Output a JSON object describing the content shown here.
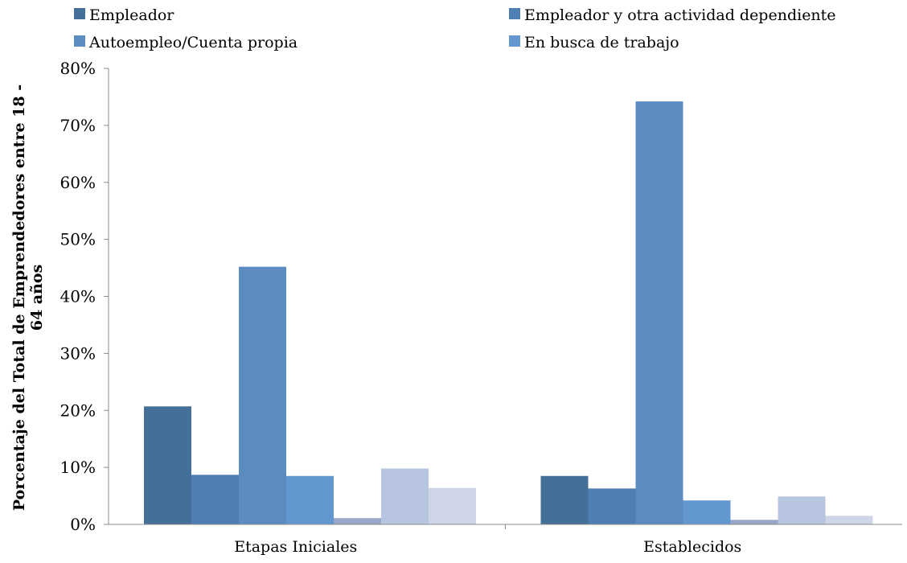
{
  "chart_data": {
    "type": "bar",
    "title": "",
    "xlabel": "",
    "ylabel": "Porcentaje del Total de Emprendedores entre 18 - 64 años",
    "ylabel_lines": [
      "Porcentaje del Total de Emprendedores entre 18 -",
      "64 años"
    ],
    "categories": [
      "Etapas Iniciales",
      "Establecidos"
    ],
    "ylim": [
      0,
      80
    ],
    "yticks": [
      "0%",
      "10%",
      "20%",
      "30%",
      "40%",
      "50%",
      "60%",
      "70%",
      "80%"
    ],
    "grid": false,
    "legend_placement": "top",
    "series": [
      {
        "name": "Empleador",
        "color": "#436f98",
        "values": [
          20.7,
          8.5
        ]
      },
      {
        "name": "Empleador y otra actividad dependiente",
        "color": "#4e7eb2",
        "values": [
          8.7,
          6.3
        ]
      },
      {
        "name": "Autoempleo/Cuenta propia",
        "color": "#5b8bbf",
        "values": [
          45.2,
          74.2
        ]
      },
      {
        "name": "En busca de trabajo",
        "color": "#6397cf",
        "values": [
          8.5,
          4.2
        ]
      },
      {
        "name": "",
        "color": "#98a8c8",
        "values": [
          1.1,
          0.8
        ]
      },
      {
        "name": "",
        "color": "#b8c5e0",
        "values": [
          9.8,
          4.9
        ]
      },
      {
        "name": "",
        "color": "#cdd5e7",
        "values": [
          6.4,
          1.5
        ]
      }
    ]
  }
}
